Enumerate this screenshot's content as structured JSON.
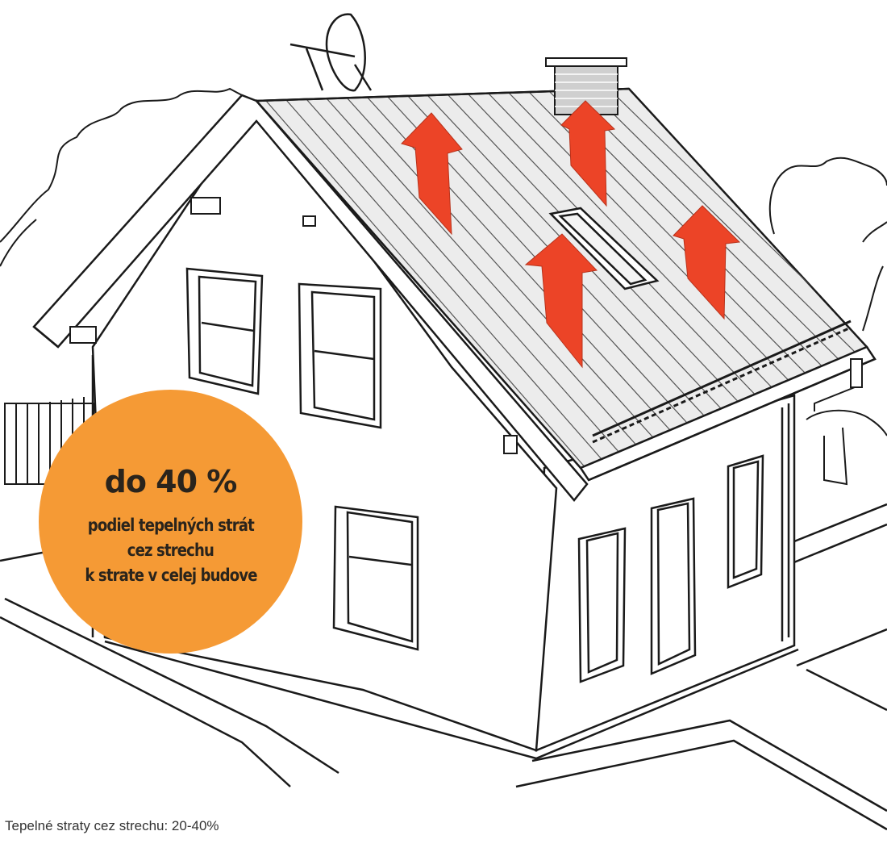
{
  "badge": {
    "headline": "do 40 %",
    "lines": [
      "podiel tepelných strát",
      "cez strechu",
      "k strate v celej budove"
    ]
  },
  "caption": "Tepelné straty cez strechu: 20-40%",
  "colors": {
    "badge": "#f59a35",
    "arrow": "#ec4427",
    "line": "#1a1a1a"
  }
}
